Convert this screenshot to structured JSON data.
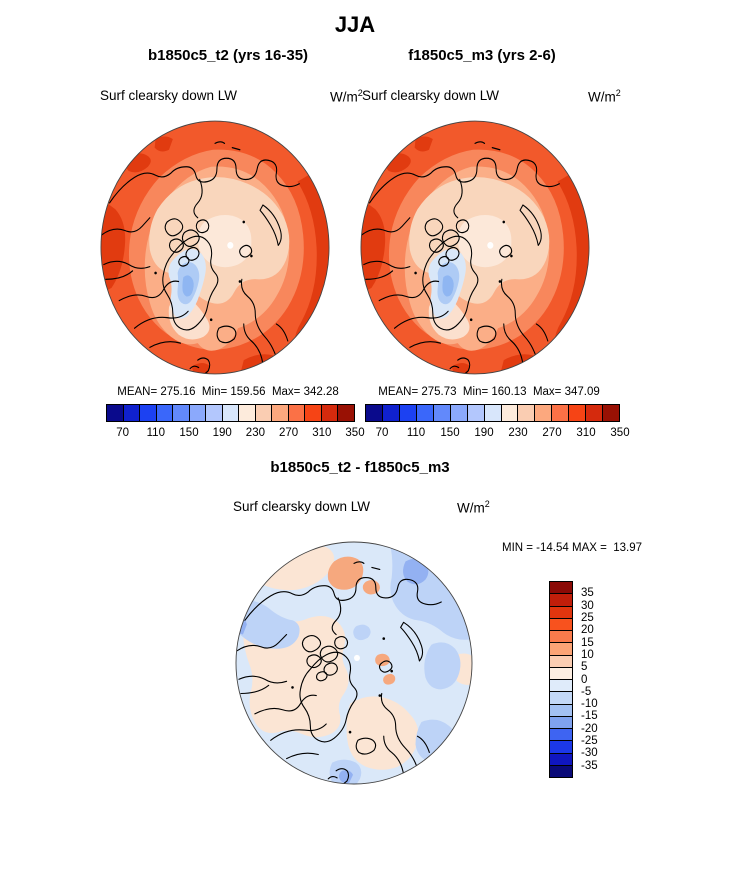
{
  "figure": {
    "season": "JJA",
    "left": {
      "run_title": "b1850c5_t2 (yrs 16-35)",
      "field": "Surf clearsky down LW",
      "units_base": "W/m",
      "units_exp": "2",
      "stats": "MEAN= 275.16  Min= 159.56  Max= 342.28"
    },
    "right": {
      "run_title": "f1850c5_m3 (yrs 2-6)",
      "field": "Surf clearsky down LW",
      "units_base": "W/m",
      "units_exp": "2",
      "stats": "MEAN= 275.73  Min= 160.13  Max= 347.09"
    },
    "diff": {
      "title": "b1850c5_t2 - f1850c5_m3",
      "field": "Surf clearsky down LW",
      "units_base": "W/m",
      "units_exp": "2",
      "minmax": "MIN = -14.54 MAX =  13.97"
    }
  },
  "colorbar_top": {
    "ticks": [
      "70",
      "110",
      "150",
      "190",
      "230",
      "270",
      "310",
      "350"
    ],
    "colors": [
      "#0A0A8C",
      "#1021CE",
      "#1C41F2",
      "#3A67FA",
      "#6289FB",
      "#8BA9FC",
      "#B3C7FD",
      "#D8E6FB",
      "#FDEBDC",
      "#FACDB2",
      "#FCA87E",
      "#FB7146",
      "#F64415",
      "#D52A0D",
      "#991104"
    ]
  },
  "colorbar_diff": {
    "labels": [
      "35",
      "30",
      "25",
      "20",
      "15",
      "10",
      "5",
      "0",
      "-5",
      "-10",
      "-15",
      "-20",
      "-25",
      "-30",
      "-35"
    ],
    "colors": [
      "#8B0A06",
      "#C11E0A",
      "#E0350E",
      "#F8521E",
      "#FA7B4C",
      "#FCA476",
      "#FBCDB2",
      "#FDEEE2",
      "#DFEBFA",
      "#C3D8F7",
      "#A3C1F3",
      "#7FA2EF",
      "#3E64F2",
      "#1C38E8",
      "#1016C0",
      "#0A0A78"
    ]
  },
  "chart_data": {
    "type": "heatmap",
    "title": "JJA",
    "variable": "Surf clearsky down LW",
    "units": "W/m2",
    "projection": "north polar stereographic",
    "panels": [
      {
        "name": "b1850c5_t2 (yrs 16-35)",
        "mean": 275.16,
        "min": 159.56,
        "max": 342.28,
        "colorbar_orientation": "horizontal",
        "colorbar_ticks": [
          70,
          110,
          150,
          190,
          230,
          270,
          310,
          350
        ],
        "n_color_segments": 15
      },
      {
        "name": "f1850c5_m3 (yrs 2-6)",
        "mean": 275.73,
        "min": 160.13,
        "max": 347.09,
        "colorbar_orientation": "horizontal",
        "colorbar_ticks": [
          70,
          110,
          150,
          190,
          230,
          270,
          310,
          350
        ],
        "n_color_segments": 15
      },
      {
        "name": "b1850c5_t2 - f1850c5_m3",
        "min": -14.54,
        "max": 13.97,
        "colorbar_orientation": "vertical",
        "colorbar_ticks": [
          35,
          30,
          25,
          20,
          15,
          10,
          5,
          0,
          -5,
          -10,
          -15,
          -20,
          -25,
          -30,
          -35
        ],
        "n_color_segments": 16
      }
    ]
  }
}
